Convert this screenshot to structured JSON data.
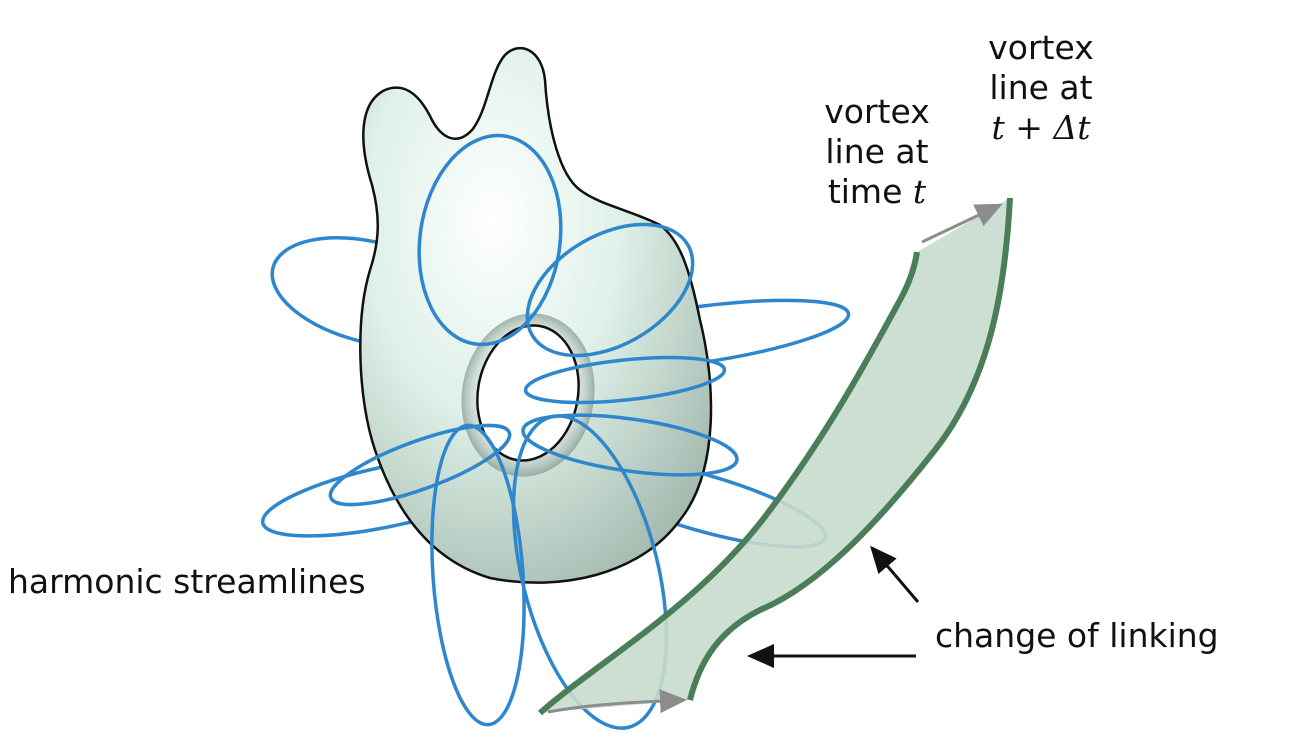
{
  "labels": {
    "vortex_t": {
      "line1": "vortex",
      "line2": "line at",
      "line3_prefix": "time",
      "line3_var": "t"
    },
    "vortex_t_dt": {
      "line1": "vortex",
      "line2": "line at",
      "line3": "t + Δt"
    },
    "harmonic": "harmonic streamlines",
    "change_of_linking": "change of linking"
  },
  "colors": {
    "surface": "#dff1e8",
    "surface_shadow": "#9fb6ab",
    "outline": "#111111",
    "streamline": "#2e86cc",
    "ribbon_fill": "#c8dccd",
    "ribbon_edge": "#4a7d58",
    "motion_arrow": "#8c8c8c",
    "pointer_arrow": "#111111"
  }
}
